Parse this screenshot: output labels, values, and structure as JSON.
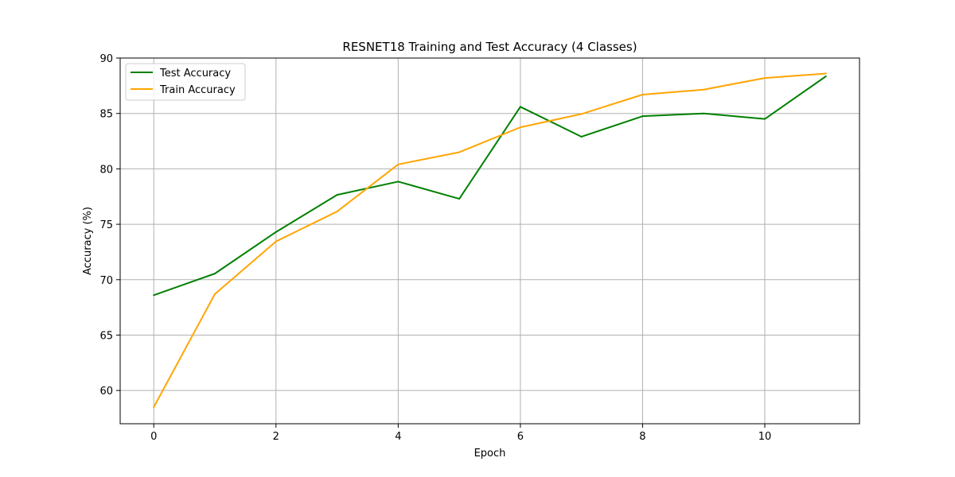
{
  "chart_data": {
    "type": "line",
    "title": "RESNET18 Training and Test Accuracy (4 Classes)",
    "xlabel": "Epoch",
    "ylabel": "Accuracy (%)",
    "x": [
      0,
      1,
      2,
      3,
      4,
      5,
      6,
      7,
      8,
      9,
      10,
      11
    ],
    "xlim": [
      -0.55,
      11.55
    ],
    "ylim": [
      57.0,
      90.0
    ],
    "xticks": [
      0,
      2,
      4,
      6,
      8,
      10
    ],
    "yticks": [
      60,
      65,
      70,
      75,
      80,
      85,
      90
    ],
    "grid": true,
    "legend_position": "top-left",
    "series": [
      {
        "name": "Test Accuracy",
        "color": "#008000",
        "values": [
          68.6,
          70.55,
          74.3,
          77.65,
          78.85,
          77.3,
          85.6,
          82.9,
          84.75,
          85.0,
          84.5,
          88.35
        ]
      },
      {
        "name": "Train Accuracy",
        "color": "#ffa500",
        "values": [
          58.5,
          68.7,
          73.45,
          76.15,
          80.4,
          81.5,
          83.75,
          84.95,
          86.7,
          87.15,
          88.2,
          88.6
        ]
      }
    ]
  }
}
